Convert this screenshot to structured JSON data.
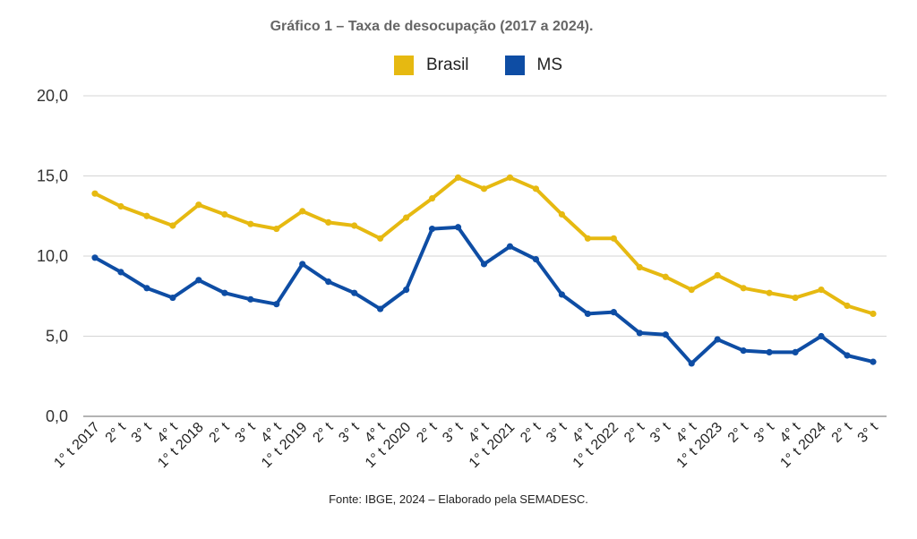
{
  "chart_data": {
    "type": "line",
    "title": "Gráfico 1 – Taxa de desocupação (2017 a 2024).",
    "source": "Fonte: IBGE, 2024 – Elaborado pela SEMADESC.",
    "categories": [
      "1° t 2017",
      "2° t",
      "3° t",
      "4° t",
      "1° t 2018",
      "2° t",
      "3° t",
      "4° t",
      "1° t 2019",
      "2° t",
      "3° t",
      "4° t",
      "1° t 2020",
      "2° t",
      "3° t",
      "4° t",
      "1° t 2021",
      "2° t",
      "3° t",
      "4° t",
      "1° t 2022",
      "2° t",
      "3° t",
      "4° t",
      "1° t 2023",
      "2° t",
      "3° t",
      "4° t",
      "1° t 2024",
      "2° t",
      "3° t"
    ],
    "ylim": [
      0,
      20
    ],
    "yticks": [
      "0,0",
      "5,0",
      "10,0",
      "15,0",
      "20,0"
    ],
    "ytick_values": [
      0,
      5,
      10,
      15,
      20
    ],
    "grid": true,
    "legend_position": "top",
    "series": [
      {
        "name": "Brasil",
        "color": "#E6B911",
        "values": [
          13.9,
          13.1,
          12.5,
          11.9,
          13.2,
          12.6,
          12.0,
          11.7,
          12.8,
          12.1,
          11.9,
          11.1,
          12.4,
          13.6,
          14.9,
          14.2,
          14.9,
          14.2,
          12.6,
          11.1,
          11.1,
          9.3,
          8.7,
          7.9,
          8.8,
          8.0,
          7.7,
          7.4,
          7.9,
          6.9,
          6.4
        ]
      },
      {
        "name": "MS",
        "color": "#0E4DA4",
        "values": [
          9.9,
          9.0,
          8.0,
          7.4,
          8.5,
          7.7,
          7.3,
          7.0,
          9.5,
          8.4,
          7.7,
          6.7,
          7.9,
          11.7,
          11.8,
          9.5,
          10.6,
          9.8,
          7.6,
          6.4,
          6.5,
          5.2,
          5.1,
          3.3,
          4.8,
          4.1,
          4.0,
          4.0,
          5.0,
          3.8,
          3.4
        ]
      }
    ]
  }
}
